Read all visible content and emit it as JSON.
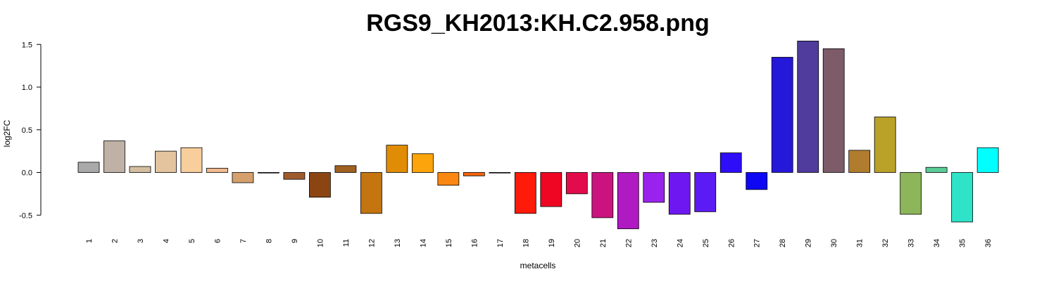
{
  "chart_data": {
    "type": "bar",
    "title": "RGS9_KH2013:KH.C2.958.png",
    "xlabel": "metacells",
    "ylabel": "log2FC",
    "ylim": [
      -0.7,
      1.6
    ],
    "yticks": [
      -0.5,
      0.0,
      0.5,
      1.0,
      1.5
    ],
    "ytick_labels": [
      "-0.5",
      "0.0",
      "0.5",
      "1.0",
      "1.5"
    ],
    "grid": false,
    "legend": "none",
    "categories": [
      "1",
      "2",
      "3",
      "4",
      "5",
      "6",
      "7",
      "8",
      "9",
      "10",
      "11",
      "12",
      "13",
      "14",
      "15",
      "16",
      "17",
      "18",
      "19",
      "20",
      "21",
      "22",
      "23",
      "24",
      "25",
      "26",
      "27",
      "28",
      "29",
      "30",
      "31",
      "32",
      "33",
      "34",
      "35",
      "36"
    ],
    "values": [
      0.12,
      0.37,
      0.07,
      0.25,
      0.29,
      0.05,
      -0.12,
      0.0,
      -0.08,
      -0.29,
      0.08,
      -0.48,
      0.32,
      0.22,
      -0.15,
      -0.04,
      0.0,
      -0.48,
      -0.4,
      -0.25,
      -0.53,
      -0.66,
      -0.35,
      -0.49,
      -0.46,
      0.23,
      -0.2,
      1.35,
      1.54,
      1.45,
      0.26,
      0.65,
      -0.49,
      0.06,
      -0.58,
      0.29
    ],
    "colors": [
      "#A9A9A9",
      "#BFB1A5",
      "#D5BE9F",
      "#E3C49E",
      "#F8CE9C",
      "#F1B98E",
      "#D4A06B",
      "#A0794E",
      "#9E5B2D",
      "#8B4513",
      "#A0601F",
      "#C47510",
      "#E08C05",
      "#FBA40C",
      "#FA8712",
      "#F8650D",
      "#E44C11",
      "#FF1A0A",
      "#EE0623",
      "#E20C4C",
      "#CA137E",
      "#AF1AC2",
      "#9922EC",
      "#6F17F0",
      "#5C1AF4",
      "#2E0DF8",
      "#0E07F4",
      "#2618D9",
      "#4F3C9C",
      "#7D5B69",
      "#B07D2F",
      "#BAA128",
      "#8DB55A",
      "#5CCC99",
      "#2EE3C8",
      "#00FFFF"
    ]
  }
}
